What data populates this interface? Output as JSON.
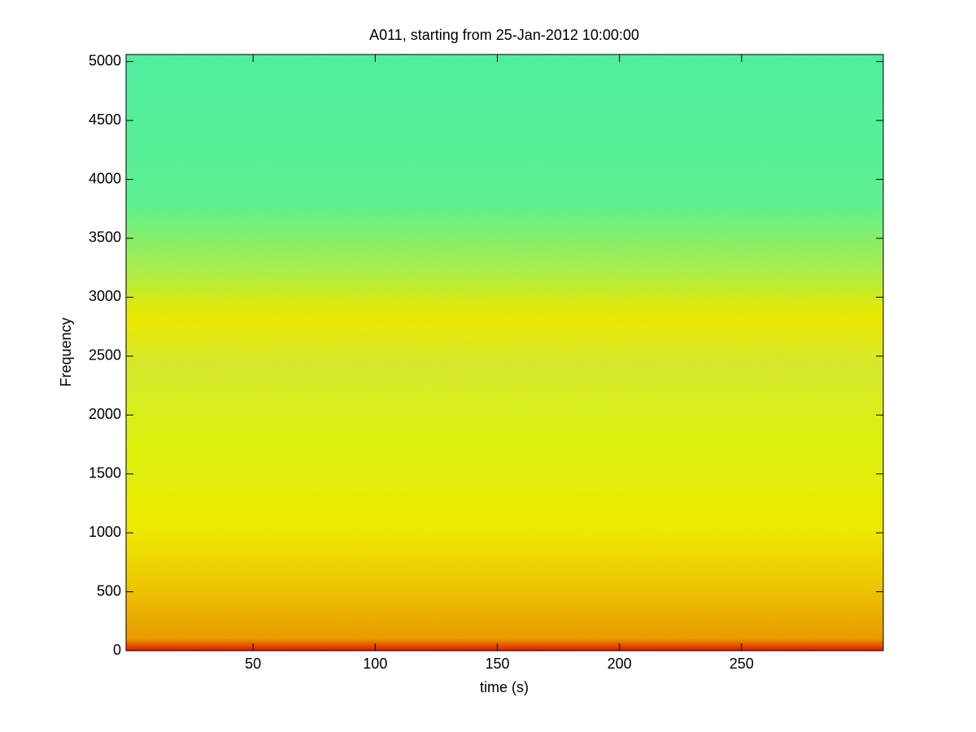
{
  "chart_data": {
    "type": "spectrogram",
    "title": "A011, starting from 25-Jan-2012 10:00:00",
    "x_label": "time (s)",
    "y_label": "Frequency",
    "xlim": [
      -2,
      308
    ],
    "xticks": [
      50,
      100,
      150,
      200,
      250
    ],
    "ylim": [
      0,
      5060
    ],
    "yticks": [
      0,
      500,
      1000,
      1500,
      2000,
      2500,
      3000,
      3500,
      4000,
      4500,
      5000
    ]
  }
}
